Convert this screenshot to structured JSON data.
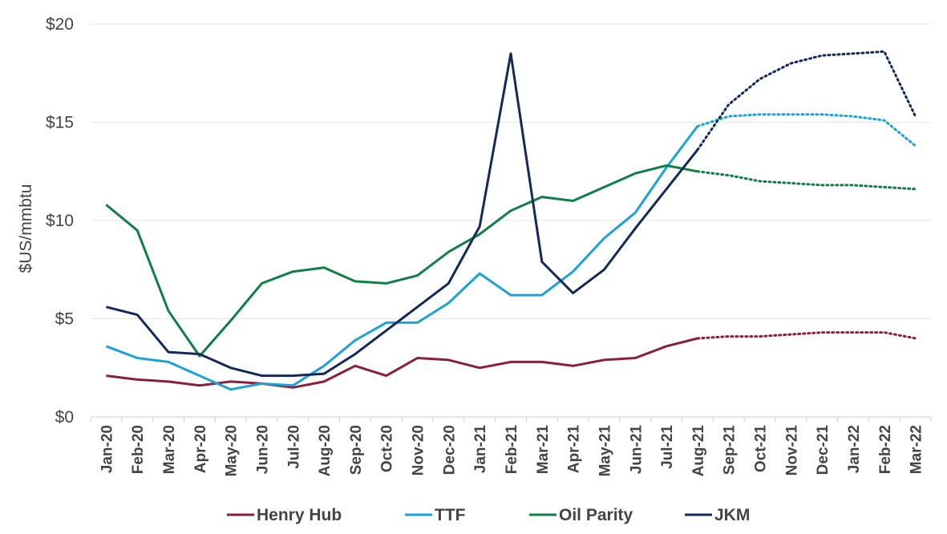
{
  "chart_data": {
    "type": "line",
    "ylabel": "$US/mmbtu",
    "xlabel": "",
    "ylim": [
      0,
      20
    ],
    "y_ticks": [
      "$0",
      "$5",
      "$10",
      "$15",
      "$20"
    ],
    "y_tick_values": [
      0,
      5,
      10,
      15,
      20
    ],
    "grid": true,
    "legend_position": "bottom",
    "categories": [
      "Jan-20",
      "Feb-20",
      "Mar-20",
      "Apr-20",
      "May-20",
      "Jun-20",
      "Jul-20",
      "Aug-20",
      "Sep-20",
      "Oct-20",
      "Nov-20",
      "Dec-20",
      "Jan-21",
      "Feb-21",
      "Mar-21",
      "Apr-21",
      "May-21",
      "Jun-21",
      "Jul-21",
      "Aug-21",
      "Sep-21",
      "Oct-21",
      "Nov-21",
      "Dec-21",
      "Jan-22",
      "Feb-22",
      "Mar-22"
    ],
    "forecast_start": "Aug-21",
    "series": [
      {
        "name": "Henry Hub",
        "color": "#8b1e3f",
        "values": [
          2.1,
          1.9,
          1.8,
          1.6,
          1.8,
          1.7,
          1.5,
          1.8,
          2.6,
          2.1,
          3.0,
          2.9,
          2.5,
          2.8,
          2.8,
          2.6,
          2.9,
          3.0,
          3.6,
          4.0,
          4.1,
          4.1,
          4.2,
          4.3,
          4.3,
          4.3,
          4.0
        ]
      },
      {
        "name": "TTF",
        "color": "#1aa3d9",
        "values": [
          3.6,
          3.0,
          2.8,
          2.1,
          1.4,
          1.7,
          1.6,
          2.6,
          3.9,
          4.8,
          4.8,
          5.8,
          7.3,
          6.2,
          6.2,
          7.4,
          9.1,
          10.4,
          12.7,
          14.8,
          15.3,
          15.4,
          15.4,
          15.4,
          15.3,
          15.1,
          13.8
        ]
      },
      {
        "name": "Oil Parity",
        "color": "#0f8045",
        "values": [
          10.8,
          9.5,
          5.4,
          3.1,
          4.9,
          6.8,
          7.4,
          7.6,
          6.9,
          6.8,
          7.2,
          8.4,
          9.3,
          10.5,
          11.2,
          11.0,
          11.7,
          12.4,
          12.8,
          12.5,
          12.3,
          12.0,
          11.9,
          11.8,
          11.8,
          11.7,
          11.6
        ]
      },
      {
        "name": "JKM",
        "color": "#13295b",
        "values": [
          5.6,
          5.2,
          3.3,
          3.2,
          2.5,
          2.1,
          2.1,
          2.2,
          3.2,
          4.4,
          5.6,
          6.8,
          9.7,
          18.5,
          7.9,
          6.3,
          7.5,
          9.6,
          11.6,
          13.6,
          15.9,
          17.2,
          18.0,
          18.4,
          18.5,
          18.6,
          15.3
        ]
      }
    ]
  }
}
